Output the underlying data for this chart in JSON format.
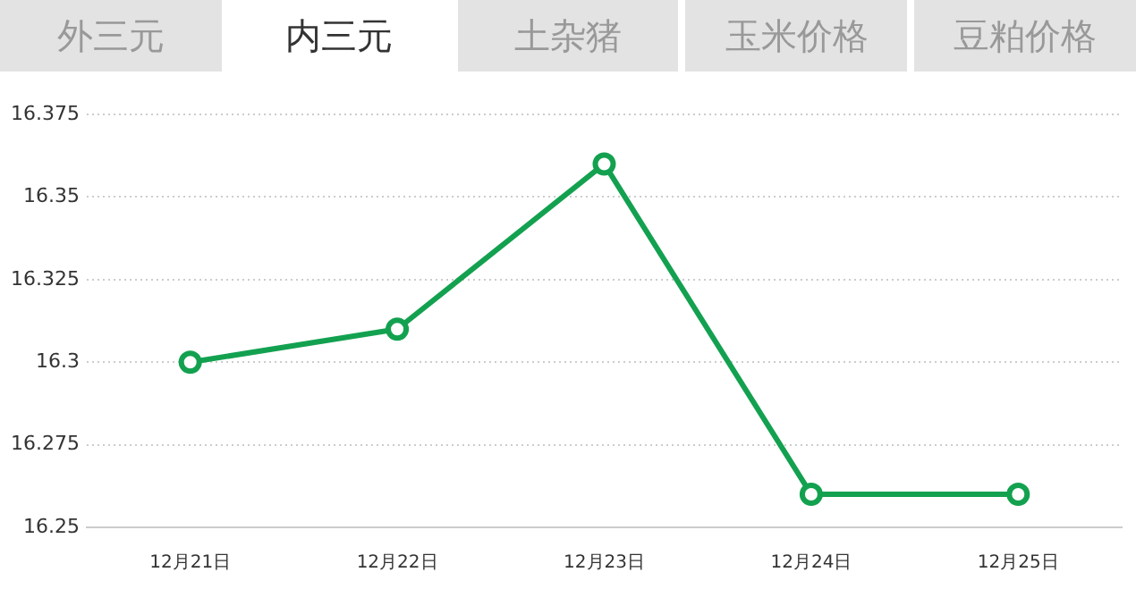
{
  "chart_data": {
    "type": "line",
    "title": "内三元",
    "annotations": [
      "外三元",
      "土杂猪",
      "玉米价格",
      "豆粕价格"
    ],
    "categories": [
      "12月21日",
      "12月22日",
      "12月23日",
      "12月24日",
      "12月25日"
    ],
    "series": [
      {
        "color": "#13a150",
        "values": [
          16.3,
          16.31,
          16.36,
          16.26,
          16.26
        ]
      }
    ],
    "ylim": [
      16.25,
      16.375
    ],
    "yticks": [
      16.25,
      16.275,
      16.3,
      16.325,
      16.35,
      16.375
    ],
    "grid": "y",
    "legend": false,
    "marker": "circle",
    "line_style": "solid"
  }
}
